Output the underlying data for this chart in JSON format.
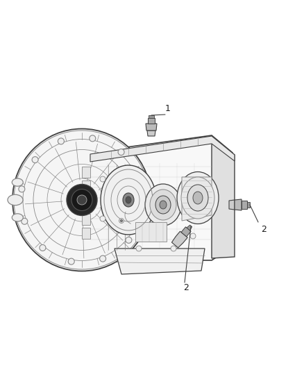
{
  "background_color": "#ffffff",
  "fig_width": 4.38,
  "fig_height": 5.33,
  "dpi": 100,
  "label1": "1",
  "label2": "2",
  "text_color": "#1a1a1a",
  "line_color": "#1a1a1a",
  "drawing_color": "#404040",
  "light_color": "#888888",
  "very_light": "#bbbbbb"
}
